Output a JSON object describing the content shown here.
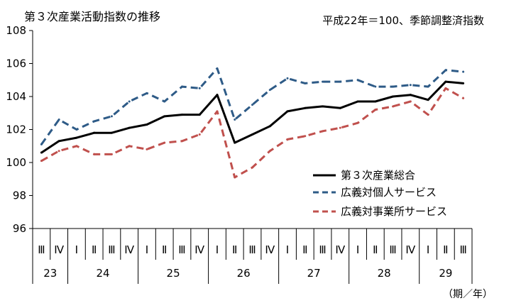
{
  "chart_data": {
    "type": "line",
    "title": "第３次産業活動指数の推移",
    "subtitle": "平成22年＝100、季節調整済指数",
    "xlabel": "（期／年）",
    "ylabel": "",
    "ylim": [
      96,
      108
    ],
    "y_ticks": [
      96,
      98,
      100,
      102,
      104,
      106,
      108
    ],
    "grid": false,
    "legend_position": "center-right",
    "quarters": [
      "Ⅲ",
      "Ⅳ",
      "Ⅰ",
      "Ⅱ",
      "Ⅲ",
      "Ⅳ",
      "Ⅰ",
      "Ⅱ",
      "Ⅲ",
      "Ⅳ",
      "Ⅰ",
      "Ⅱ",
      "Ⅲ",
      "Ⅳ",
      "Ⅰ",
      "Ⅱ",
      "Ⅲ",
      "Ⅳ",
      "Ⅰ",
      "Ⅱ",
      "Ⅲ",
      "Ⅳ",
      "Ⅰ",
      "Ⅱ",
      "Ⅲ"
    ],
    "years": [
      {
        "label": "23",
        "start": 0,
        "count": 2
      },
      {
        "label": "24",
        "start": 2,
        "count": 4
      },
      {
        "label": "25",
        "start": 6,
        "count": 4
      },
      {
        "label": "26",
        "start": 10,
        "count": 4
      },
      {
        "label": "27",
        "start": 14,
        "count": 4
      },
      {
        "label": "28",
        "start": 18,
        "count": 4
      },
      {
        "label": "29",
        "start": 22,
        "count": 3
      }
    ],
    "series": [
      {
        "name": "第３次産業総合",
        "color": "#000000",
        "style": "solid",
        "values": [
          100.6,
          101.3,
          101.5,
          101.8,
          101.8,
          102.1,
          102.3,
          102.8,
          102.9,
          102.9,
          104.1,
          101.2,
          101.7,
          102.2,
          103.1,
          103.3,
          103.4,
          103.3,
          103.7,
          103.7,
          104.0,
          104.1,
          103.8,
          104.9,
          104.8
        ]
      },
      {
        "name": "広義対個人サービス",
        "color": "#2e5b87",
        "style": "dashed",
        "values": [
          101.1,
          102.6,
          102.0,
          102.5,
          102.8,
          103.7,
          104.2,
          103.7,
          104.6,
          104.5,
          105.7,
          102.6,
          103.5,
          104.4,
          105.1,
          104.8,
          104.9,
          104.9,
          105.0,
          104.6,
          104.6,
          104.7,
          104.6,
          105.6,
          105.5
        ]
      },
      {
        "name": "広義対事業所サービス",
        "color": "#c0504d",
        "style": "dashed",
        "values": [
          100.1,
          100.7,
          101.0,
          100.5,
          100.5,
          101.0,
          100.8,
          101.2,
          101.3,
          101.7,
          103.1,
          99.1,
          99.7,
          100.7,
          101.4,
          101.6,
          101.9,
          102.1,
          102.4,
          103.2,
          103.4,
          103.7,
          102.9,
          104.5,
          103.9
        ]
      }
    ]
  }
}
